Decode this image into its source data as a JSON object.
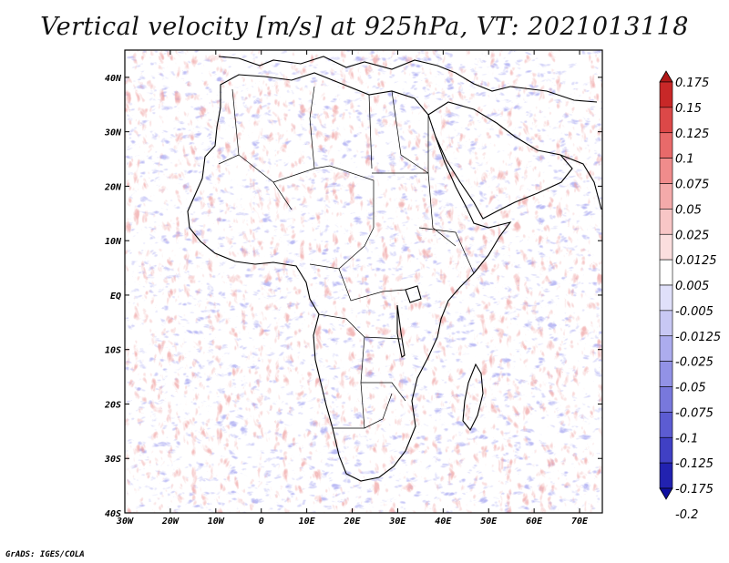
{
  "title": "Vertical velocity [m/s] at 925hPa, VT: 2021013118",
  "map": {
    "lon_range": [
      -30,
      75
    ],
    "lat_range": [
      -40,
      45
    ],
    "lat_ticks": [
      "40N",
      "30N",
      "20N",
      "10N",
      "EQ",
      "10S",
      "20S",
      "30S",
      "40S"
    ],
    "lon_ticks": [
      "30W",
      "20W",
      "10W",
      "0",
      "10E",
      "20E",
      "30E",
      "40E",
      "50E",
      "60E",
      "70E"
    ],
    "field": "vertical velocity",
    "units": "m/s",
    "level": "925hPa"
  },
  "colorbar": {
    "labels": [
      "0.175",
      "0.15",
      "0.125",
      "0.1",
      "0.075",
      "0.05",
      "0.025",
      "0.0125",
      "0.005",
      "-0.005",
      "-0.0125",
      "-0.025",
      "-0.05",
      "-0.075",
      "-0.1",
      "-0.125",
      "-0.175",
      "-0.2"
    ],
    "colors": [
      "#b01818",
      "#c82828",
      "#dc4848",
      "#e86a6a",
      "#f08c8c",
      "#f4aaaa",
      "#f8c6c6",
      "#fbdede",
      "#ffffff",
      "#e0e0fa",
      "#c8c8f4",
      "#acacee",
      "#9292e6",
      "#7878dc",
      "#5c5cd2",
      "#4040c4",
      "#2222b0",
      "#1010a0"
    ]
  },
  "footer": "GrADS: IGES/COLA"
}
